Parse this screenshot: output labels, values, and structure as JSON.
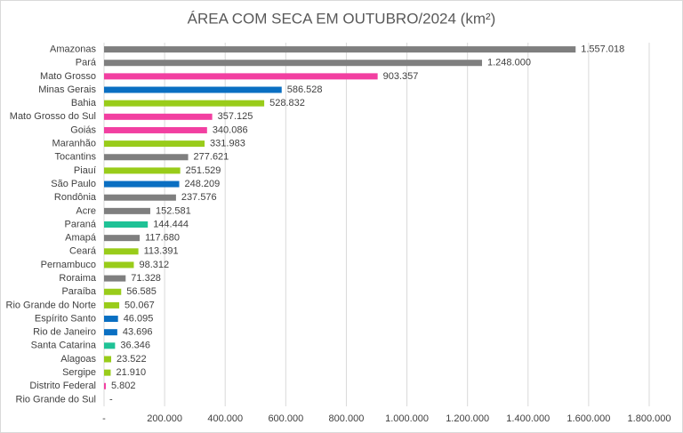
{
  "chart_data": {
    "type": "hbar",
    "title": "ÁREA COM SECA EM OUTUBRO/2024 (km²)",
    "categories": [
      "Amazonas",
      "Pará",
      "Mato Grosso",
      "Minas Gerais",
      "Bahia",
      "Mato Grosso do Sul",
      "Goiás",
      "Maranhão",
      "Tocantins",
      "Piauí",
      "São Paulo",
      "Rondônia",
      "Acre",
      "Paraná",
      "Amapá",
      "Ceará",
      "Pernambuco",
      "Roraima",
      "Paraíba",
      "Rio Grande do Norte",
      "Espírito Santo",
      "Rio de Janeiro",
      "Santa Catarina",
      "Alagoas",
      "Sergipe",
      "Distrito Federal",
      "Rio Grande do Sul"
    ],
    "values": [
      1557018,
      1248000,
      903357,
      586528,
      528832,
      357125,
      340086,
      331983,
      277621,
      251529,
      248209,
      237576,
      152581,
      144444,
      117680,
      113391,
      98312,
      71328,
      56585,
      50067,
      46095,
      43696,
      36346,
      23522,
      21910,
      5802,
      0
    ],
    "value_labels": [
      "1.557.018",
      "1.248.000",
      "903.357",
      "586.528",
      "528.832",
      "357.125",
      "340.086",
      "331.983",
      "277.621",
      "251.529",
      "248.209",
      "237.576",
      "152.581",
      "144.444",
      "117.680",
      "113.391",
      "98.312",
      "71.328",
      "56.585",
      "50.067",
      "46.095",
      "43.696",
      "36.346",
      "23.522",
      "21.910",
      "5.802",
      "-"
    ],
    "colors": [
      "#7f7f7f",
      "#7f7f7f",
      "#f23fa1",
      "#0a6fc2",
      "#99cc1a",
      "#f23fa1",
      "#f23fa1",
      "#99cc1a",
      "#7f7f7f",
      "#99cc1a",
      "#0a6fc2",
      "#7f7f7f",
      "#7f7f7f",
      "#1fc296",
      "#7f7f7f",
      "#99cc1a",
      "#99cc1a",
      "#7f7f7f",
      "#99cc1a",
      "#99cc1a",
      "#0a6fc2",
      "#0a6fc2",
      "#1fc296",
      "#99cc1a",
      "#99cc1a",
      "#f23fa1",
      "#7f7f7f"
    ],
    "xlim": [
      0,
      1800000
    ],
    "xticks": [
      {
        "value": 0,
        "label": "-"
      },
      {
        "value": 200000,
        "label": "200.000"
      },
      {
        "value": 400000,
        "label": "400.000"
      },
      {
        "value": 600000,
        "label": "600.000"
      },
      {
        "value": 800000,
        "label": "800.000"
      },
      {
        "value": 1000000,
        "label": "1.000.000"
      },
      {
        "value": 1200000,
        "label": "1.200.000"
      },
      {
        "value": 1400000,
        "label": "1.400.000"
      },
      {
        "value": 1600000,
        "label": "1.600.000"
      },
      {
        "value": 1800000,
        "label": "1.800.000"
      }
    ],
    "grid": true
  }
}
